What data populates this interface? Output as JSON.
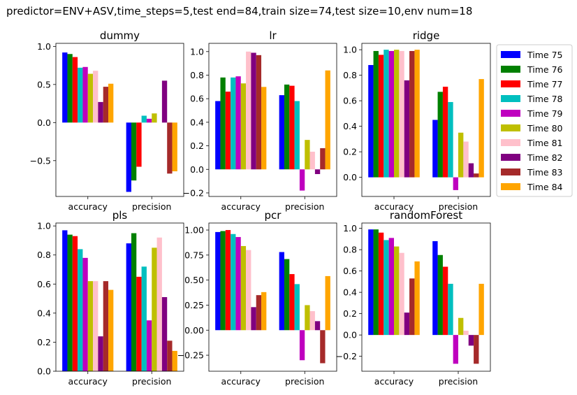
{
  "suptitle": "predictor=ENV+ASV,time_steps=5,test end=84,train size=74,test size=10,env num=18",
  "series_colors": [
    "#0000ff",
    "#008000",
    "#ff0000",
    "#00bfbf",
    "#bf00bf",
    "#bfbf00",
    "#ffc0cb",
    "#800080",
    "#a52a2a",
    "#ffa500"
  ],
  "legend": [
    "Time 75",
    "Time 76",
    "Time 77",
    "Time 78",
    "Time 79",
    "Time 80",
    "Time 81",
    "Time 82",
    "Time 83",
    "Time 84"
  ],
  "chart_data": [
    {
      "type": "bar",
      "title": "dummy",
      "categories": [
        "accuracy",
        "precision"
      ],
      "ylim": [
        -0.97,
        1.04
      ],
      "yticks": [
        -0.5,
        0.0,
        0.5,
        1.0
      ],
      "ytick_labels": [
        "−0.5",
        "0.0",
        "0.5",
        "1.0"
      ],
      "series": [
        {
          "name": "Time 75",
          "values": [
            0.92,
            -0.91
          ]
        },
        {
          "name": "Time 76",
          "values": [
            0.9,
            -0.76
          ]
        },
        {
          "name": "Time 77",
          "values": [
            0.86,
            -0.58
          ]
        },
        {
          "name": "Time 78",
          "values": [
            0.72,
            0.09
          ]
        },
        {
          "name": "Time 79",
          "values": [
            0.73,
            0.05
          ]
        },
        {
          "name": "Time 80",
          "values": [
            0.64,
            0.12
          ]
        },
        {
          "name": "Time 81",
          "values": [
            0.68,
            0.0
          ]
        },
        {
          "name": "Time 82",
          "values": [
            0.27,
            0.55
          ]
        },
        {
          "name": "Time 83",
          "values": [
            0.47,
            -0.67
          ]
        },
        {
          "name": "Time 84",
          "values": [
            0.51,
            -0.64
          ]
        }
      ]
    },
    {
      "type": "bar",
      "title": "lr",
      "categories": [
        "accuracy",
        "precision"
      ],
      "ylim": [
        -0.23,
        1.07
      ],
      "yticks": [
        -0.2,
        0.0,
        0.2,
        0.4,
        0.6,
        0.8,
        1.0
      ],
      "ytick_labels": [
        "−0.2",
        "0.0",
        "0.2",
        "0.4",
        "0.6",
        "0.8",
        "1.0"
      ],
      "series": [
        {
          "name": "Time 75",
          "values": [
            0.58,
            0.63
          ]
        },
        {
          "name": "Time 76",
          "values": [
            0.78,
            0.72
          ]
        },
        {
          "name": "Time 77",
          "values": [
            0.66,
            0.71
          ]
        },
        {
          "name": "Time 78",
          "values": [
            0.78,
            0.58
          ]
        },
        {
          "name": "Time 79",
          "values": [
            0.79,
            -0.18
          ]
        },
        {
          "name": "Time 80",
          "values": [
            0.73,
            0.25
          ]
        },
        {
          "name": "Time 81",
          "values": [
            1.0,
            0.15
          ]
        },
        {
          "name": "Time 82",
          "values": [
            0.99,
            -0.04
          ]
        },
        {
          "name": "Time 83",
          "values": [
            0.97,
            0.18
          ]
        },
        {
          "name": "Time 84",
          "values": [
            0.7,
            0.84
          ]
        }
      ]
    },
    {
      "type": "bar",
      "title": "ridge",
      "categories": [
        "accuracy",
        "precision"
      ],
      "ylim": [
        -0.15,
        1.05
      ],
      "yticks": [
        0.0,
        0.2,
        0.4,
        0.6,
        0.8,
        1.0
      ],
      "ytick_labels": [
        "0.0",
        "0.2",
        "0.4",
        "0.6",
        "0.8",
        "1.0"
      ],
      "series": [
        {
          "name": "Time 75",
          "values": [
            0.88,
            0.45
          ]
        },
        {
          "name": "Time 76",
          "values": [
            0.99,
            0.67
          ]
        },
        {
          "name": "Time 77",
          "values": [
            0.96,
            0.71
          ]
        },
        {
          "name": "Time 78",
          "values": [
            1.0,
            0.59
          ]
        },
        {
          "name": "Time 79",
          "values": [
            0.99,
            -0.1
          ]
        },
        {
          "name": "Time 80",
          "values": [
            1.0,
            0.35
          ]
        },
        {
          "name": "Time 81",
          "values": [
            0.99,
            0.28
          ]
        },
        {
          "name": "Time 82",
          "values": [
            0.76,
            0.11
          ]
        },
        {
          "name": "Time 83",
          "values": [
            0.99,
            0.03
          ]
        },
        {
          "name": "Time 84",
          "values": [
            1.0,
            0.77
          ]
        }
      ]
    },
    {
      "type": "bar",
      "title": "pls",
      "categories": [
        "accuracy",
        "precision"
      ],
      "ylim": [
        0.0,
        1.02
      ],
      "yticks": [
        0.0,
        0.2,
        0.4,
        0.6,
        0.8,
        1.0
      ],
      "ytick_labels": [
        "0.0",
        "0.2",
        "0.4",
        "0.6",
        "0.8",
        "1.0"
      ],
      "series": [
        {
          "name": "Time 75",
          "values": [
            0.97,
            0.88
          ]
        },
        {
          "name": "Time 76",
          "values": [
            0.94,
            0.95
          ]
        },
        {
          "name": "Time 77",
          "values": [
            0.93,
            0.65
          ]
        },
        {
          "name": "Time 78",
          "values": [
            0.84,
            0.72
          ]
        },
        {
          "name": "Time 79",
          "values": [
            0.78,
            0.35
          ]
        },
        {
          "name": "Time 80",
          "values": [
            0.62,
            0.85
          ]
        },
        {
          "name": "Time 81",
          "values": [
            0.62,
            0.92
          ]
        },
        {
          "name": "Time 82",
          "values": [
            0.24,
            0.51
          ]
        },
        {
          "name": "Time 83",
          "values": [
            0.62,
            0.21
          ]
        },
        {
          "name": "Time 84",
          "values": [
            0.56,
            0.14
          ]
        }
      ]
    },
    {
      "type": "bar",
      "title": "pcr",
      "categories": [
        "accuracy",
        "precision"
      ],
      "ylim": [
        -0.41,
        1.07
      ],
      "yticks": [
        -0.25,
        0.0,
        0.25,
        0.5,
        0.75,
        1.0
      ],
      "ytick_labels": [
        "−0.25",
        "0.00",
        "0.25",
        "0.50",
        "0.75",
        "1.00"
      ],
      "series": [
        {
          "name": "Time 75",
          "values": [
            0.98,
            0.78
          ]
        },
        {
          "name": "Time 76",
          "values": [
            0.99,
            0.71
          ]
        },
        {
          "name": "Time 77",
          "values": [
            1.0,
            0.56
          ]
        },
        {
          "name": "Time 78",
          "values": [
            0.96,
            0.46
          ]
        },
        {
          "name": "Time 79",
          "values": [
            0.93,
            -0.3
          ]
        },
        {
          "name": "Time 80",
          "values": [
            0.84,
            0.25
          ]
        },
        {
          "name": "Time 81",
          "values": [
            0.8,
            0.19
          ]
        },
        {
          "name": "Time 82",
          "values": [
            0.23,
            0.09
          ]
        },
        {
          "name": "Time 83",
          "values": [
            0.35,
            -0.33
          ]
        },
        {
          "name": "Time 84",
          "values": [
            0.38,
            0.54
          ]
        }
      ]
    },
    {
      "type": "bar",
      "title": "randomForest",
      "categories": [
        "accuracy",
        "precision"
      ],
      "ylim": [
        -0.34,
        1.05
      ],
      "yticks": [
        -0.2,
        0.0,
        0.2,
        0.4,
        0.6,
        0.8,
        1.0
      ],
      "ytick_labels": [
        "−0.2",
        "0.0",
        "0.2",
        "0.4",
        "0.6",
        "0.8",
        "1.0"
      ],
      "series": [
        {
          "name": "Time 75",
          "values": [
            0.99,
            0.88
          ]
        },
        {
          "name": "Time 76",
          "values": [
            0.99,
            0.75
          ]
        },
        {
          "name": "Time 77",
          "values": [
            0.96,
            0.64
          ]
        },
        {
          "name": "Time 78",
          "values": [
            0.89,
            0.48
          ]
        },
        {
          "name": "Time 79",
          "values": [
            0.91,
            -0.27
          ]
        },
        {
          "name": "Time 80",
          "values": [
            0.83,
            0.16
          ]
        },
        {
          "name": "Time 81",
          "values": [
            0.77,
            0.04
          ]
        },
        {
          "name": "Time 82",
          "values": [
            0.21,
            -0.1
          ]
        },
        {
          "name": "Time 83",
          "values": [
            0.53,
            -0.27
          ]
        },
        {
          "name": "Time 84",
          "values": [
            0.69,
            0.48
          ]
        }
      ]
    }
  ]
}
